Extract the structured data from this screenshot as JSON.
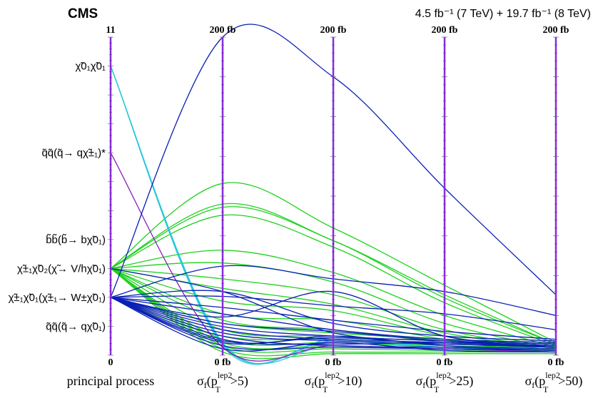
{
  "header": {
    "experiment": "CMS",
    "luminosity_label": "4.5 fb⁻¹ (7 TeV) + 19.7 fb⁻¹ (8 TeV)"
  },
  "chart_data": {
    "type": "line",
    "chart_kind": "parallel-coordinates",
    "axes": [
      {
        "id": "principal",
        "bottom_value_label": "0",
        "top_value_label": "11",
        "axis_title": "principal process"
      },
      {
        "id": "pt5",
        "bottom_value_label": "0 fb",
        "top_value_label": "200 fb",
        "axis_title_main": "σ",
        "axis_title_sub": "f",
        "axis_title_rest_a": "(p",
        "axis_title_sup": "lep2",
        "axis_title_sub2": "T",
        "axis_title_rest_b": ">5)"
      },
      {
        "id": "pt10",
        "bottom_value_label": "0 fb",
        "top_value_label": "200 fb",
        "axis_title_main": "σ",
        "axis_title_sub": "f",
        "axis_title_rest_a": "(p",
        "axis_title_sup": "lep2",
        "axis_title_sub2": "T",
        "axis_title_rest_b": ">10)"
      },
      {
        "id": "pt25",
        "bottom_value_label": "0 fb",
        "top_value_label": "200 fb",
        "axis_title_main": "σ",
        "axis_title_sub": "f",
        "axis_title_rest_a": "(p",
        "axis_title_sup": "lep2",
        "axis_title_sub2": "T",
        "axis_title_rest_b": ">25)"
      },
      {
        "id": "pt50",
        "bottom_value_label": "0 fb",
        "top_value_label": "200 fb",
        "axis_title_main": "σ",
        "axis_title_sub": "f",
        "axis_title_rest_a": "(p",
        "axis_title_sup": "lep2",
        "axis_title_sub2": "T",
        "axis_title_rest_b": ">50)"
      }
    ],
    "principal_processes": [
      {
        "label": "χ̃0₁χ̃0₁",
        "value": 10
      },
      {
        "label": "q̃q̃(q̃→ qχ̃±₁)*",
        "value": 7
      },
      {
        "label": "b̃b̃(b̃→ bχ̃0₁)",
        "value": 4
      },
      {
        "label": "χ̃±₁χ̃0₂(χ̃→ V/hχ̃0₁)",
        "value": 3
      },
      {
        "label": "χ̃±₁χ̃0₁(χ̃±₁→ W±χ̃0₁)",
        "value": 2
      },
      {
        "label": "q̃q̃(q̃→ qχ̃0₁)",
        "value": 1
      }
    ],
    "series_colors": {
      "blue": "#0a1fb5",
      "green": "#1ed11e",
      "cyan": "#27c8d8",
      "purple": "#8a1ab8",
      "axis": "#8a2be2"
    },
    "series": [
      {
        "color": "blue",
        "values": [
          2,
          200,
          175,
          105,
          38
        ]
      },
      {
        "color": "blue",
        "values": [
          2,
          56,
          48,
          40,
          25
        ]
      },
      {
        "color": "blue",
        "values": [
          2,
          37,
          31,
          26,
          16
        ]
      },
      {
        "color": "blue",
        "values": [
          2,
          24,
          40,
          12,
          7
        ]
      },
      {
        "color": "blue",
        "values": [
          2,
          40,
          20,
          12,
          9
        ]
      },
      {
        "color": "blue",
        "values": [
          2,
          30,
          22,
          15,
          10
        ]
      },
      {
        "color": "blue",
        "values": [
          2,
          26,
          16,
          10,
          8
        ]
      },
      {
        "color": "blue",
        "values": [
          2,
          20,
          15,
          9,
          6
        ]
      },
      {
        "color": "blue",
        "values": [
          2,
          16,
          10,
          8,
          5
        ]
      },
      {
        "color": "blue",
        "values": [
          2,
          14,
          9,
          7,
          5
        ]
      },
      {
        "color": "blue",
        "values": [
          2,
          10,
          7,
          8,
          5
        ]
      },
      {
        "color": "blue",
        "values": [
          2,
          8,
          12,
          6,
          4
        ]
      },
      {
        "color": "blue",
        "values": [
          2,
          12,
          6,
          5,
          3
        ]
      },
      {
        "color": "blue",
        "values": [
          2,
          6,
          5,
          4,
          3
        ]
      },
      {
        "color": "blue",
        "values": [
          2,
          4,
          8,
          3,
          2
        ]
      },
      {
        "color": "blue",
        "values": [
          3,
          40,
          14,
          9,
          5
        ]
      },
      {
        "color": "blue",
        "values": [
          2,
          18,
          12,
          9,
          7
        ]
      },
      {
        "color": "blue",
        "values": [
          2,
          9,
          11,
          7,
          6
        ]
      },
      {
        "color": "green",
        "values": [
          3,
          108,
          80,
          44,
          8
        ]
      },
      {
        "color": "green",
        "values": [
          3,
          95,
          72,
          38,
          7
        ]
      },
      {
        "color": "green",
        "values": [
          3,
          93,
          72,
          36,
          7
        ]
      },
      {
        "color": "green",
        "values": [
          3,
          88,
          68,
          33,
          6
        ]
      },
      {
        "color": "green",
        "values": [
          3,
          66,
          52,
          25,
          5
        ]
      },
      {
        "color": "green",
        "values": [
          3,
          58,
          46,
          20,
          4
        ]
      },
      {
        "color": "green",
        "values": [
          3,
          48,
          38,
          16,
          4
        ]
      },
      {
        "color": "green",
        "values": [
          3,
          42,
          32,
          14,
          4
        ]
      },
      {
        "color": "green",
        "values": [
          3,
          34,
          28,
          12,
          3
        ]
      },
      {
        "color": "green",
        "values": [
          3,
          26,
          22,
          10,
          3
        ]
      },
      {
        "color": "green",
        "values": [
          3,
          22,
          16,
          8,
          3
        ]
      },
      {
        "color": "green",
        "values": [
          3,
          16,
          12,
          6,
          2
        ]
      },
      {
        "color": "green",
        "values": [
          3,
          10,
          8,
          5,
          2
        ]
      },
      {
        "color": "green",
        "values": [
          3,
          6,
          4,
          3,
          2
        ]
      },
      {
        "color": "green",
        "values": [
          3,
          4,
          2,
          2,
          2
        ]
      },
      {
        "color": "green",
        "values": [
          3,
          2,
          1,
          1,
          1
        ]
      },
      {
        "color": "green",
        "values": [
          2,
          20,
          14,
          10,
          8
        ]
      },
      {
        "color": "green",
        "values": [
          2,
          12,
          10,
          6,
          5
        ]
      },
      {
        "color": "green",
        "values": [
          3,
          8,
          6,
          4,
          2
        ]
      },
      {
        "color": "cyan",
        "values": [
          10,
          6,
          10,
          5,
          3
        ]
      },
      {
        "color": "cyan",
        "values": [
          10,
          8,
          6,
          4,
          2
        ]
      },
      {
        "color": "cyan",
        "values": [
          10,
          7,
          9,
          5,
          4
        ]
      },
      {
        "color": "purple",
        "values": [
          7,
          5,
          6,
          4,
          2
        ]
      }
    ]
  }
}
